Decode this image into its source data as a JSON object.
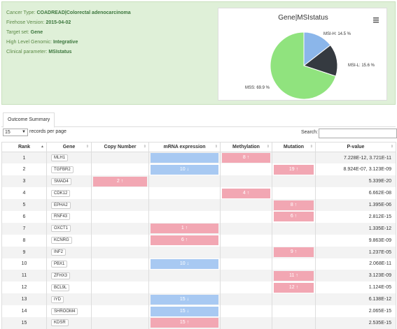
{
  "info": {
    "cancer_type_label": "Cancer Type:",
    "cancer_type_value": "COADREAD|Colorectal adenocarcinoma",
    "firehose_label": "Firehose Version:",
    "firehose_value": "2015-04-02",
    "target_label": "Target set:",
    "target_value": "Gene",
    "genomic_label": "High Level Genomic:",
    "genomic_value": "Integrative",
    "clinical_label": "Clinical parameter:",
    "clinical_value": "MSIstatus"
  },
  "chart_data": {
    "type": "pie",
    "title": "Gene|MSIstatus",
    "slices": [
      {
        "label": "MSI-H",
        "value": 14.5,
        "text": "MSI-H: 14.5 %",
        "color": "#8bb6ea"
      },
      {
        "label": "MSI-L",
        "value": 15.6,
        "text": "MSI-L: 15.6 %",
        "color": "#353a40"
      },
      {
        "label": "MSS",
        "value": 69.9,
        "text": "MSS: 69.9 %",
        "color": "#90e37e"
      }
    ]
  },
  "tabs": [
    "Outcome Summary"
  ],
  "controls": {
    "page_size": "15",
    "records_label": "records per page",
    "search_label": "Search:",
    "search_value": ""
  },
  "table": {
    "headers": [
      "Rank",
      "Gene",
      "Copy Number",
      "mRNA expression",
      "Methylation",
      "Mutation",
      "P-value"
    ],
    "rows": [
      {
        "rank": "1",
        "gene": "MLH1",
        "copy": "",
        "mrna": "",
        "mrna_color": "blue",
        "meth": "8 ↑",
        "meth_color": "red",
        "mut": "",
        "mut_color": "",
        "p": "7.228E-12, 3.721E-11"
      },
      {
        "rank": "2",
        "gene": "TGFBR2",
        "copy": "",
        "mrna": "10 ↓",
        "mrna_color": "blue",
        "meth": "",
        "meth_color": "",
        "mut": "19 ↑",
        "mut_color": "red",
        "p": "8.924E-07, 3.123E-09"
      },
      {
        "rank": "3",
        "gene": "SMAD4",
        "copy": "2 ↑",
        "mrna": "",
        "mrna_color": "",
        "meth": "",
        "meth_color": "",
        "mut": "",
        "mut_color": "",
        "p": "5.339E-20"
      },
      {
        "rank": "4",
        "gene": "CDK12",
        "copy": "",
        "mrna": "",
        "mrna_color": "",
        "meth": "4 ↑",
        "meth_color": "red",
        "mut": "",
        "mut_color": "",
        "p": "6.662E-08"
      },
      {
        "rank": "5",
        "gene": "EPHA2",
        "copy": "",
        "mrna": "",
        "mrna_color": "",
        "meth": "",
        "meth_color": "",
        "mut": "8 ↑",
        "mut_color": "red",
        "p": "1.395E-06"
      },
      {
        "rank": "6",
        "gene": "RNF43",
        "copy": "",
        "mrna": "",
        "mrna_color": "",
        "meth": "",
        "meth_color": "",
        "mut": "6 ↑",
        "mut_color": "red",
        "p": "2.812E-15"
      },
      {
        "rank": "7",
        "gene": "OXCT1",
        "copy": "",
        "mrna": "1 ↑",
        "mrna_color": "red",
        "meth": "",
        "meth_color": "",
        "mut": "",
        "mut_color": "",
        "p": "1.335E-12"
      },
      {
        "rank": "8",
        "gene": "KCNRG",
        "copy": "",
        "mrna": "6 ↑",
        "mrna_color": "red",
        "meth": "",
        "meth_color": "",
        "mut": "",
        "mut_color": "",
        "p": "9.863E-09"
      },
      {
        "rank": "9",
        "gene": "INF2",
        "copy": "",
        "mrna": "",
        "mrna_color": "",
        "meth": "",
        "meth_color": "",
        "mut": "9 ↑",
        "mut_color": "red",
        "p": "1.237E-05"
      },
      {
        "rank": "10",
        "gene": "PBX1",
        "copy": "",
        "mrna": "10 ↓",
        "mrna_color": "blue",
        "meth": "",
        "meth_color": "",
        "mut": "",
        "mut_color": "",
        "p": "2.068E-11"
      },
      {
        "rank": "11",
        "gene": "ZFHX3",
        "copy": "",
        "mrna": "",
        "mrna_color": "",
        "meth": "",
        "meth_color": "",
        "mut": "11 ↑",
        "mut_color": "red",
        "p": "3.123E-09"
      },
      {
        "rank": "12",
        "gene": "BCL9L",
        "copy": "",
        "mrna": "",
        "mrna_color": "",
        "meth": "",
        "meth_color": "",
        "mut": "12 ↑",
        "mut_color": "red",
        "p": "1.124E-05"
      },
      {
        "rank": "13",
        "gene": "IYD",
        "copy": "",
        "mrna": "15 ↓",
        "mrna_color": "blue",
        "meth": "",
        "meth_color": "",
        "mut": "",
        "mut_color": "",
        "p": "6.138E-12"
      },
      {
        "rank": "14",
        "gene": "SHROOM4",
        "copy": "",
        "mrna": "15 ↓",
        "mrna_color": "blue",
        "meth": "",
        "meth_color": "",
        "mut": "",
        "mut_color": "",
        "p": "2.065E-15"
      },
      {
        "rank": "15",
        "gene": "KDSR",
        "copy": "",
        "mrna": "15 ↑",
        "mrna_color": "red",
        "meth": "",
        "meth_color": "",
        "mut": "",
        "mut_color": "",
        "p": "2.535E-15"
      }
    ]
  }
}
